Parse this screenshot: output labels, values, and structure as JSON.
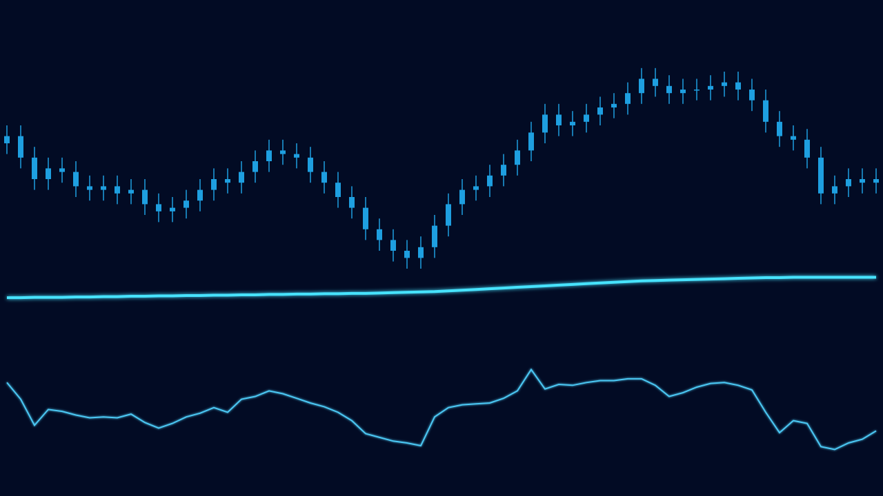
{
  "chart_data": [
    {
      "type": "candlestick",
      "ylim": [
        0,
        100
      ],
      "color": "#1e9fe0",
      "open": [
        60,
        62,
        56,
        50,
        53,
        52,
        48,
        47,
        48,
        46,
        47,
        43,
        41,
        42,
        44,
        47,
        50,
        49,
        52,
        55,
        58,
        57,
        56,
        52,
        49,
        45,
        42,
        36,
        33,
        30,
        28,
        31,
        37,
        43,
        47,
        48,
        51,
        54,
        58,
        63,
        68,
        65,
        66,
        68,
        70,
        71,
        74,
        78,
        76,
        74,
        75,
        75,
        76,
        77,
        75,
        72,
        66,
        62,
        61,
        56,
        46,
        48,
        50,
        49
      ],
      "high": [
        65,
        65,
        59,
        56,
        56,
        55,
        51,
        51,
        51,
        50,
        50,
        46,
        45,
        47,
        50,
        53,
        53,
        55,
        58,
        61,
        61,
        60,
        59,
        55,
        52,
        48,
        45,
        39,
        36,
        33,
        34,
        40,
        46,
        50,
        51,
        54,
        57,
        61,
        66,
        71,
        71,
        69,
        71,
        73,
        74,
        77,
        81,
        81,
        79,
        78,
        78,
        79,
        80,
        80,
        78,
        75,
        69,
        65,
        64,
        59,
        51,
        53,
        53,
        53
      ],
      "low": [
        57,
        53,
        47,
        47,
        49,
        45,
        44,
        44,
        43,
        43,
        40,
        38,
        38,
        39,
        41,
        44,
        46,
        46,
        49,
        52,
        54,
        53,
        49,
        46,
        42,
        39,
        33,
        30,
        27,
        25,
        25,
        28,
        34,
        40,
        44,
        45,
        48,
        51,
        55,
        60,
        62,
        62,
        63,
        65,
        67,
        68,
        71,
        73,
        71,
        71,
        72,
        72,
        73,
        72,
        69,
        63,
        59,
        58,
        53,
        43,
        43,
        45,
        46,
        46
      ],
      "close": [
        62,
        56,
        50,
        53,
        52,
        48,
        47,
        48,
        46,
        47,
        43,
        41,
        42,
        44,
        47,
        50,
        49,
        52,
        55,
        58,
        57,
        56,
        52,
        49,
        45,
        42,
        36,
        33,
        30,
        28,
        31,
        37,
        43,
        47,
        48,
        51,
        54,
        58,
        63,
        68,
        65,
        66,
        68,
        70,
        71,
        74,
        78,
        76,
        74,
        75,
        75,
        76,
        77,
        75,
        72,
        66,
        62,
        61,
        56,
        46,
        48,
        50,
        49,
        50
      ],
      "series": [
        {
          "color": "#46e3ff",
          "values": [
            16.9,
            16.9,
            17.0,
            17.0,
            17.0,
            17.1,
            17.1,
            17.2,
            17.2,
            17.3,
            17.3,
            17.4,
            17.4,
            17.5,
            17.5,
            17.6,
            17.6,
            17.7,
            17.7,
            17.8,
            17.8,
            17.9,
            17.9,
            18.0,
            18.0,
            18.1,
            18.1,
            18.2,
            18.3,
            18.4,
            18.5,
            18.6,
            18.8,
            19.0,
            19.2,
            19.4,
            19.6,
            19.8,
            20.0,
            20.2,
            20.4,
            20.6,
            20.8,
            21.0,
            21.2,
            21.4,
            21.6,
            21.7,
            21.8,
            21.9,
            22.0,
            22.1,
            22.2,
            22.3,
            22.4,
            22.5,
            22.5,
            22.6,
            22.6,
            22.6,
            22.6,
            22.6,
            22.6,
            22.6
          ]
        }
      ]
    },
    {
      "type": "line",
      "ylim": [
        0,
        100
      ],
      "levels": [
        100,
        0
      ],
      "level_color": "#1f7fb0",
      "series": [
        {
          "color": "#4cc8f4",
          "values": [
            85,
            67,
            39,
            56,
            54,
            50,
            47,
            48,
            47,
            51,
            42,
            36,
            41,
            48,
            52,
            58,
            53,
            67,
            70,
            76,
            73,
            68,
            63,
            59,
            53,
            44,
            30,
            26,
            22,
            20,
            17,
            48,
            58,
            61,
            62,
            63,
            68,
            76,
            99,
            78,
            83,
            82,
            85,
            87,
            87,
            89,
            89,
            82,
            70,
            74,
            80,
            84,
            85,
            82,
            77,
            53,
            31,
            44,
            41,
            16,
            13,
            20,
            24,
            33
          ]
        }
      ]
    }
  ]
}
